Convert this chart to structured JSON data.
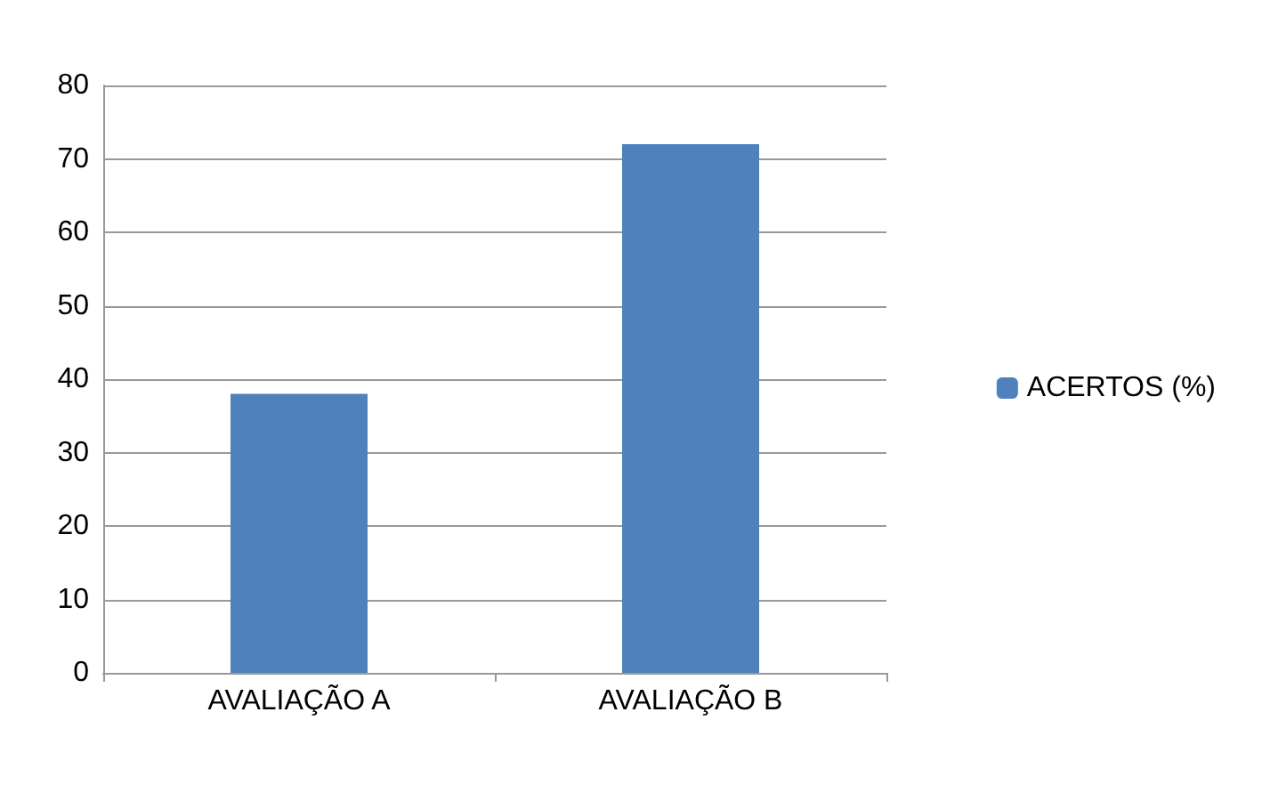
{
  "chart_data": {
    "type": "bar",
    "categories": [
      "AVALIAÇÃO A",
      "AVALIAÇÃO B"
    ],
    "series": [
      {
        "name": "ACERTOS (%)",
        "color": "#4f81bd",
        "values": [
          38,
          72
        ]
      }
    ],
    "ylim": [
      0,
      80
    ],
    "yticks": [
      0,
      10,
      20,
      30,
      40,
      50,
      60,
      70,
      80
    ],
    "grid": "y",
    "legend": "right"
  }
}
